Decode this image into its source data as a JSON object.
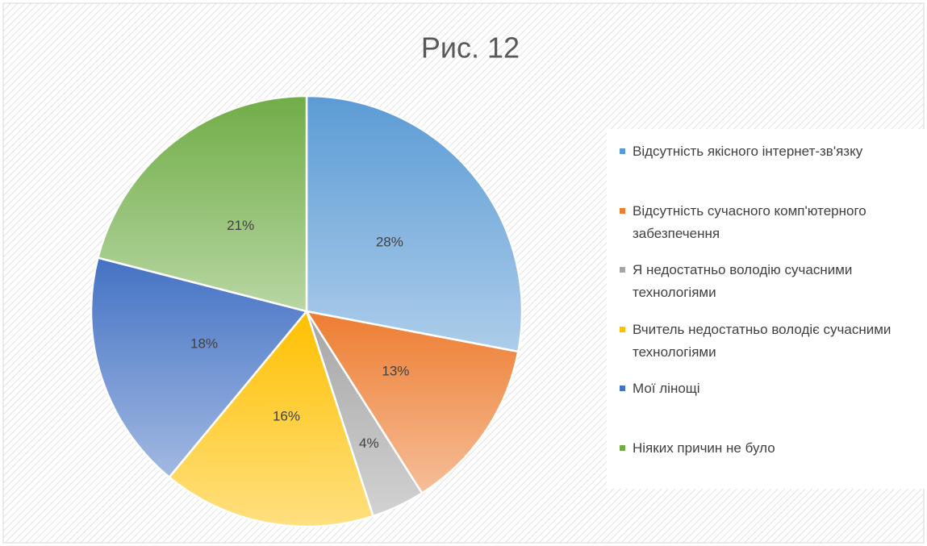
{
  "chart_data": {
    "type": "pie",
    "title": "Рис. 12",
    "categories": [
      "Відсутність якісного інтернет-зв'язку",
      "Відсутність сучасного комп'ютерного забезпечення",
      "Я недостатньо володію сучасними технологіями",
      "Вчитель недостатньо володіє сучасними технологіями",
      "Мої лінощі",
      "Ніяких причин не було"
    ],
    "values": [
      28,
      13,
      4,
      16,
      18,
      21
    ],
    "value_labels": [
      "28%",
      "13%",
      "4%",
      "16%",
      "18%",
      "21%"
    ],
    "colors": [
      "#5b9bd5",
      "#ed7d31",
      "#a5a5a5",
      "#ffc000",
      "#4472c4",
      "#70ad47"
    ],
    "legend": "right"
  }
}
